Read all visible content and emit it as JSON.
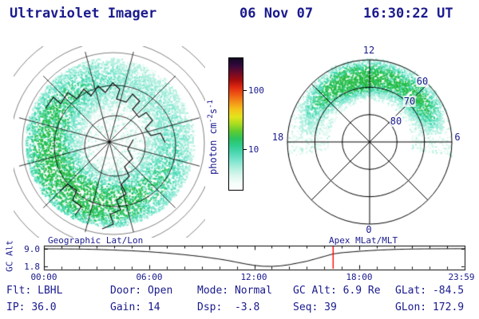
{
  "header": {
    "title": "Ultraviolet Imager",
    "date": "06 Nov 07",
    "time": "16:30:22 UT"
  },
  "palette": {
    "text": "#1a1a8e",
    "axis": "#000000",
    "marker": "#ff0000",
    "background": "#ffffff",
    "aurora_pale": "#dff8f1",
    "aurora_light": "#b0efdf",
    "aurora_cyan": "#7de6cf",
    "aurora_teal": "#45d8ae",
    "aurora_green": "#2fc869",
    "aurora_bright": "#25ba41"
  },
  "colorbar": {
    "label_photon": "photon cm",
    "sup_minus2": "-2",
    "label_s": "s",
    "sup_minus1": "-1",
    "tick_upper": "100",
    "tick_lower": "10",
    "gradient_bottom_to_top": [
      "#ffffff",
      "#f2fdfa",
      "#d8f6ec",
      "#aeeedd",
      "#7ce4cd",
      "#4fd8b4",
      "#2fcd8f",
      "#2cc45f",
      "#5ecb31",
      "#a8dc20",
      "#e3e41c",
      "#f5c31a",
      "#f39018",
      "#ee5a14",
      "#e02a10",
      "#a60d0d",
      "#6e0a28",
      "#33093c",
      "#120722"
    ]
  },
  "right_plot": {
    "mlt_top": "12",
    "mlt_left": "18",
    "mlt_right": "6",
    "mlt_bottom": "0",
    "mlat_labels": [
      "60",
      "70",
      "80"
    ]
  },
  "timeline": {
    "ylabel": "GC Alt",
    "ytick_top": "9.0",
    "ytick_bottom": "1.8",
    "left_label": "Geographic Lat/Lon",
    "right_label": "Apex MLat/MLT",
    "xticks": [
      "00:00",
      "06:00",
      "12:00",
      "18:00",
      "23:59"
    ]
  },
  "status": {
    "flt": {
      "label": "Flt:",
      "value": "LBHL"
    },
    "door": {
      "label": "Door:",
      "value": "Open"
    },
    "mode": {
      "label": "Mode:",
      "value": "Normal"
    },
    "gc_alt": {
      "label": "GC Alt:",
      "value": "6.9 Re"
    },
    "glat": {
      "label": "GLat:",
      "value": "-84.5"
    },
    "ip": {
      "label": "IP:",
      "value": "36.0"
    },
    "gain": {
      "label": "Gain:",
      "value": "14"
    },
    "dsp": {
      "label": "Dsp:",
      "value": "-3.8"
    },
    "seq": {
      "label": "Seq:",
      "value": "39"
    },
    "glon": {
      "label": "GLon:",
      "value": "172.9"
    }
  },
  "chart_data": [
    {
      "type": "heatmap",
      "title": "Geographic Lat/Lon",
      "description": "UV auroral image of the southern polar region over a geographic lat/lon grid with coastlines; diffuse cyan-green emission strongest toward lower-left limb",
      "colorbar_units": "photon cm-2 s-1",
      "colorbar_ticks": [
        10,
        100
      ]
    },
    {
      "type": "heatmap",
      "title": "Apex MLat/MLT",
      "rings_mlat": [
        60,
        70,
        80
      ],
      "mlt_labels": [
        "12",
        "18",
        "6",
        "0"
      ],
      "description": "Same auroral emission mapped to apex magnetic latitude / magnetic local time; band spans the dayside between ~60 and ~80 MLat"
    },
    {
      "type": "line",
      "title": "GC Alt",
      "ylabel": "GC Alt",
      "ylim": [
        1.8,
        9.0
      ],
      "yticks": [
        9.0,
        1.8
      ],
      "xticks": [
        "00:00",
        "06:00",
        "12:00",
        "18:00",
        "23:59"
      ],
      "x_hours": [
        0,
        1,
        2,
        3,
        4,
        5,
        6,
        7,
        8,
        9,
        10,
        10.5,
        11,
        11.5,
        12,
        12.5,
        13,
        13.5,
        14,
        15,
        16,
        16.5,
        17,
        18,
        19,
        20,
        21,
        22,
        23,
        23.98
      ],
      "y_re": [
        9.0,
        8.97,
        8.9,
        8.75,
        8.5,
        8.2,
        7.8,
        7.25,
        6.6,
        5.8,
        4.8,
        4.2,
        3.5,
        2.8,
        2.2,
        1.85,
        1.8,
        2.0,
        2.5,
        3.9,
        5.9,
        6.9,
        7.4,
        8.0,
        8.45,
        8.75,
        8.92,
        9.0,
        9.03,
        9.05
      ],
      "marker_hour": 16.5,
      "marker_color": "#ff0000"
    }
  ]
}
